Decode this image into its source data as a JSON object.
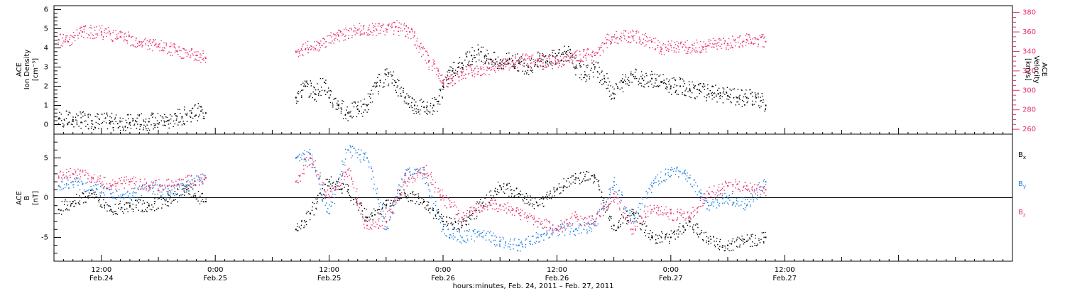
{
  "xaxis": {
    "label": "hours:minutes, Feb. 24, 2011 – Feb. 27, 2011",
    "range_hours": [
      7.0,
      108.0
    ],
    "ticks": [
      {
        "hour": 12,
        "time": "12:00",
        "date": "Feb.24"
      },
      {
        "hour": 24,
        "time": "0:00",
        "date": "Feb.25"
      },
      {
        "hour": 36,
        "time": "12:00",
        "date": "Feb.25"
      },
      {
        "hour": 48,
        "time": "0:00",
        "date": "Feb.26"
      },
      {
        "hour": 60,
        "time": "12:00",
        "date": "Feb.26"
      },
      {
        "hour": 72,
        "time": "0:00",
        "date": "Feb.27"
      },
      {
        "hour": 84,
        "time": "12:00",
        "date": "Feb.27"
      }
    ]
  },
  "top_panel": {
    "left_label_lines": [
      "ACE",
      "Ion Density",
      "[cm⁻³]"
    ],
    "right_label_lines": [
      "ACE",
      "Velocity",
      "[km/s]"
    ],
    "left_ylim": [
      -0.5,
      6.2
    ],
    "left_ticks": [
      "0",
      "1",
      "2",
      "3",
      "4",
      "5",
      "6"
    ],
    "right_ylim": [
      255,
      387
    ],
    "right_ticks": [
      "260",
      "280",
      "300",
      "320",
      "340",
      "360",
      "380"
    ],
    "colors": {
      "density": "#000000",
      "velocity": "#e8336a"
    }
  },
  "bottom_panel": {
    "left_label_lines": [
      "ACE",
      "B",
      "[nT]"
    ],
    "ylim": [
      -8.0,
      8.0
    ],
    "ticks": [
      "-5",
      "0",
      "5"
    ],
    "legend": [
      {
        "name": "Bx",
        "main": "B",
        "sub": "x",
        "color": "#000000"
      },
      {
        "name": "By",
        "main": "B",
        "sub": "y",
        "color": "#1e7fe0"
      },
      {
        "name": "Bz",
        "main": "B",
        "sub": "z",
        "color": "#e8336a"
      }
    ]
  },
  "chart_data": [
    {
      "type": "scatter",
      "ylabel": "ACE Ion Density [cm⁻³]",
      "y2label": "ACE Velocity [km/s]",
      "xlim": [
        7.0,
        108.0
      ],
      "data_gap_hours": [
        23.0,
        32.5
      ],
      "series": [
        {
          "name": "Ion Density",
          "axis": "left",
          "x": [
            7.5,
            9,
            11,
            13,
            15,
            17,
            19,
            20.5,
            21.5,
            22.5,
            23.0,
            32.5,
            33.5,
            34.5,
            35.5,
            36.0,
            37.0,
            38.0,
            39.0,
            40.0,
            41.0,
            42.0,
            43.0,
            44.0,
            45.0,
            46.0,
            47.0,
            47.5,
            48.0,
            49.0,
            50.0,
            51.0,
            52.0,
            53.0,
            54.0,
            55.0,
            56.0,
            57.0,
            58.0,
            59.0,
            60.0,
            61.0,
            62.0,
            63.0,
            64.0,
            65.0,
            66.0,
            67.0,
            68.0,
            69.0,
            70.0,
            71.0,
            72.0,
            73.0,
            74.0,
            75.0,
            76.0,
            77.0,
            78.0,
            79.0,
            80.0,
            81.0,
            82.0
          ],
          "y": [
            0.3,
            0.25,
            0.2,
            0.15,
            0.1,
            0.15,
            0.2,
            0.4,
            0.6,
            0.7,
            0.6,
            1.4,
            2.0,
            1.6,
            2.2,
            1.4,
            1.0,
            0.6,
            0.8,
            1.0,
            2.0,
            2.6,
            2.2,
            1.4,
            1.0,
            0.9,
            1.0,
            1.2,
            2.0,
            2.8,
            3.2,
            3.6,
            3.8,
            3.4,
            3.2,
            3.4,
            3.2,
            3.0,
            3.4,
            3.3,
            3.6,
            3.8,
            3.0,
            2.6,
            3.0,
            2.4,
            1.6,
            2.2,
            2.6,
            2.4,
            2.4,
            2.2,
            2.0,
            2.0,
            1.8,
            1.8,
            1.6,
            1.6,
            1.5,
            1.4,
            1.4,
            1.4,
            1.0
          ]
        },
        {
          "name": "Velocity",
          "axis": "right",
          "x": [
            7.5,
            8.5,
            10,
            12,
            14,
            16,
            18,
            20,
            22,
            23.0,
            32.5,
            33.5,
            35,
            37,
            39,
            41,
            43,
            44.5,
            45.5,
            46.5,
            47.5,
            48.0,
            49.0,
            50.0,
            52.0,
            54.0,
            56.0,
            58.0,
            60.0,
            61.0,
            62.0,
            63.0,
            64.0,
            65.0,
            66.0,
            68.0,
            70.0,
            71.0,
            72.0,
            74.0,
            76.0,
            78.0,
            80.0,
            82.0
          ],
          "y": [
            352,
            350,
            360,
            360,
            355,
            350,
            345,
            340,
            336,
            333,
            340,
            342,
            348,
            356,
            362,
            362,
            365,
            360,
            345,
            330,
            320,
            310,
            310,
            318,
            322,
            325,
            330,
            332,
            328,
            330,
            336,
            336,
            336,
            348,
            355,
            355,
            350,
            342,
            346,
            344,
            346,
            348,
            352,
            350
          ]
        }
      ]
    },
    {
      "type": "scatter",
      "ylabel": "ACE B [nT]",
      "xlim": [
        7.0,
        108.0
      ],
      "ylim": [
        -8.0,
        8.0
      ],
      "data_gap_hours": [
        23.0,
        32.5
      ],
      "series": [
        {
          "name": "Bx",
          "x": [
            7.5,
            9,
            11,
            13,
            15,
            17,
            19,
            21,
            23.0,
            32.5,
            34,
            36,
            38,
            40,
            42,
            44,
            46,
            48,
            50,
            52,
            54,
            56,
            58,
            60,
            62,
            64,
            66,
            68,
            70,
            72,
            74,
            76,
            78,
            80,
            82
          ],
          "y": [
            -1.5,
            -0.5,
            0.5,
            -1.5,
            -1.0,
            -1.0,
            -0.5,
            1.0,
            -0.5,
            -4.0,
            -2.0,
            2.0,
            1.0,
            -2.5,
            -1.0,
            0.5,
            -0.5,
            -3.0,
            -3.5,
            -1.0,
            1.5,
            0.5,
            -1.0,
            1.0,
            2.5,
            2.5,
            -3.5,
            -2.0,
            -5.0,
            -5.0,
            -3.0,
            -5.5,
            -6.0,
            -5.5,
            -5.0
          ]
        },
        {
          "name": "By",
          "x": [
            7.5,
            9,
            11,
            13,
            15,
            17,
            19,
            21,
            23.0,
            32.5,
            34,
            36,
            38,
            40,
            42,
            44,
            46,
            48,
            50,
            52,
            54,
            56,
            58,
            60,
            62,
            64,
            66,
            68,
            70,
            72,
            74,
            76,
            78,
            80,
            82
          ],
          "y": [
            1.5,
            2.0,
            1.0,
            0.5,
            0.0,
            1.5,
            0.5,
            1.5,
            2.5,
            5.0,
            5.5,
            -2.0,
            6.0,
            5.0,
            -4.0,
            3.0,
            3.0,
            -4.0,
            -5.0,
            -4.5,
            -5.5,
            -6.0,
            -5.0,
            -4.0,
            -4.0,
            -3.5,
            2.0,
            -3.0,
            1.5,
            3.5,
            2.5,
            -1.0,
            0.0,
            -1.0,
            2.0
          ]
        },
        {
          "name": "Bz",
          "x": [
            7.5,
            9,
            11,
            13,
            15,
            17,
            19,
            21,
            23.0,
            32.5,
            34,
            36,
            38,
            40,
            42,
            44,
            46,
            48,
            50,
            52,
            54,
            56,
            58,
            60,
            62,
            64,
            66,
            68,
            70,
            72,
            74,
            76,
            78,
            80,
            82
          ],
          "y": [
            2.5,
            3.0,
            2.5,
            1.5,
            2.0,
            1.5,
            1.5,
            2.0,
            2.5,
            2.0,
            5.0,
            0.0,
            3.5,
            -3.5,
            -3.0,
            2.0,
            3.5,
            0.0,
            -2.5,
            -1.0,
            -1.0,
            -2.0,
            -3.0,
            -4.0,
            -2.5,
            -3.0,
            0.5,
            -4.0,
            -1.5,
            -2.0,
            -2.5,
            0.5,
            1.5,
            1.5,
            1.0
          ]
        }
      ]
    }
  ]
}
